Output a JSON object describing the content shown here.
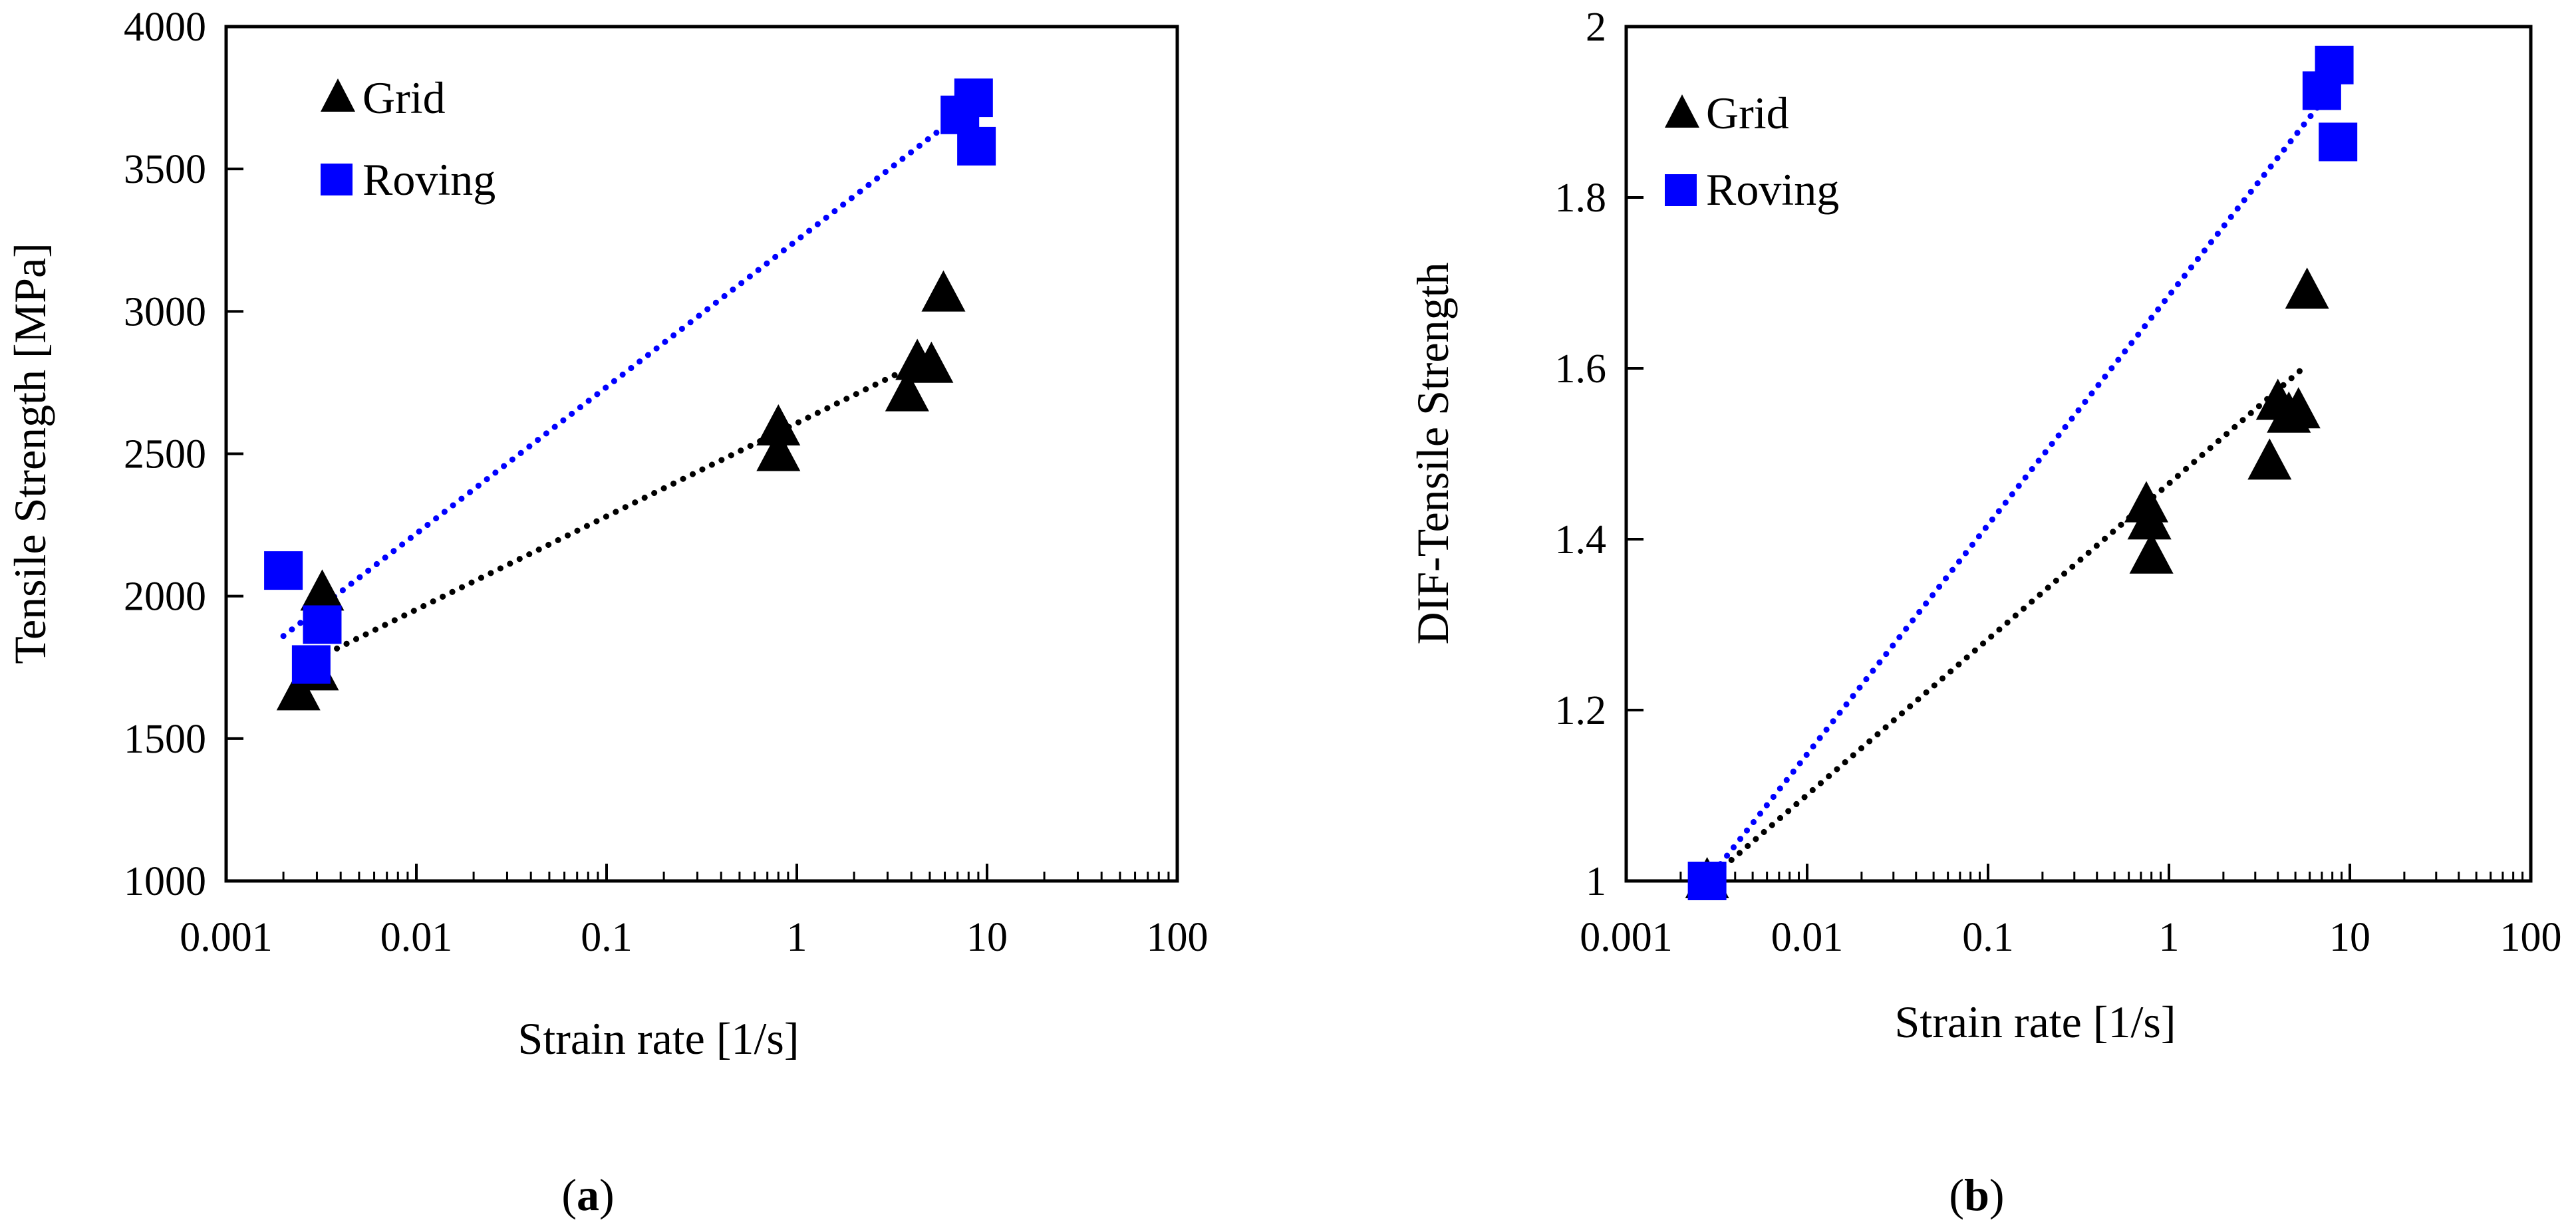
{
  "figure": {
    "colors": {
      "grid": "#000000",
      "roving": "#0000ff",
      "axis": "#000000",
      "background": "#ffffff"
    }
  },
  "chart_data": [
    {
      "id": "a",
      "type": "scatter",
      "caption": {
        "open": "(",
        "letter": "a",
        "close": ")"
      },
      "xlabel": "Strain rate [1/s]",
      "ylabel": "Tensile Strength [MPa]",
      "xscale": "log",
      "xlim": [
        0.001,
        100
      ],
      "ylim": [
        1000,
        4000
      ],
      "xticks": [
        0.001,
        0.01,
        0.1,
        1,
        10,
        100
      ],
      "xtick_labels": [
        "0.001",
        "0.01",
        "0.1",
        "1",
        "10",
        "100"
      ],
      "yticks": [
        1000,
        1500,
        2000,
        2500,
        3000,
        3500,
        4000
      ],
      "ytick_labels": [
        "1000",
        "1500",
        "2000",
        "2500",
        "3000",
        "3500",
        "4000"
      ],
      "legend_position": "top-left",
      "series": [
        {
          "name": "Grid",
          "marker": "triangle",
          "color": "#000000",
          "points": [
            [
              0.0024,
              1660
            ],
            [
              0.003,
              1730
            ],
            [
              0.0032,
              2010
            ],
            [
              0.8,
              2500
            ],
            [
              0.8,
              2590
            ],
            [
              3.8,
              2710
            ],
            [
              4.3,
              2820
            ],
            [
              5.1,
              2810
            ],
            [
              5.9,
              3060
            ]
          ],
          "trendline": [
            [
              0.0024,
              1750
            ],
            [
              5.5,
              2850
            ]
          ]
        },
        {
          "name": "Roving",
          "marker": "square",
          "color": "#0000ff",
          "points": [
            [
              0.002,
              2090
            ],
            [
              0.0028,
              1760
            ],
            [
              0.0032,
              1900
            ],
            [
              7.2,
              3690
            ],
            [
              8.5,
              3750
            ],
            [
              8.8,
              3580
            ]
          ],
          "trendline": [
            [
              0.002,
              1860
            ],
            [
              7.5,
              3700
            ]
          ]
        }
      ]
    },
    {
      "id": "b",
      "type": "scatter",
      "caption": {
        "open": "(",
        "letter": "b",
        "close": ")"
      },
      "xlabel": "Strain rate [1/s]",
      "ylabel": "DIF-Tensile Strength",
      "xscale": "log",
      "xlim": [
        0.001,
        100
      ],
      "ylim": [
        1,
        2
      ],
      "xticks": [
        0.001,
        0.01,
        0.1,
        1,
        10,
        100
      ],
      "xtick_labels": [
        "0.001",
        "0.01",
        "0.1",
        "1",
        "10",
        "100"
      ],
      "yticks": [
        1,
        1.2,
        1.4,
        1.6,
        1.8,
        2
      ],
      "ytick_labels": [
        "1",
        "1.2",
        "1.4",
        "1.6",
        "1.8",
        "2"
      ],
      "legend_position": "top-left",
      "series": [
        {
          "name": "Grid",
          "marker": "triangle",
          "color": "#000000",
          "points": [
            [
              0.0028,
              1.0
            ],
            [
              0.75,
              1.44
            ],
            [
              0.78,
              1.42
            ],
            [
              0.8,
              1.38
            ],
            [
              3.6,
              1.49
            ],
            [
              4.0,
              1.56
            ],
            [
              4.6,
              1.545
            ],
            [
              5.2,
              1.55
            ],
            [
              5.8,
              1.69
            ]
          ],
          "trendline": [
            [
              0.0028,
              1.0
            ],
            [
              5.5,
              1.6
            ]
          ]
        },
        {
          "name": "Roving",
          "marker": "square",
          "color": "#0000ff",
          "points": [
            [
              0.0028,
              1.0
            ],
            [
              7.0,
              1.925
            ],
            [
              8.2,
              1.955
            ],
            [
              8.6,
              1.865
            ]
          ],
          "trendline": [
            [
              0.0028,
              1.0
            ],
            [
              7.5,
              1.92
            ]
          ]
        }
      ]
    }
  ]
}
